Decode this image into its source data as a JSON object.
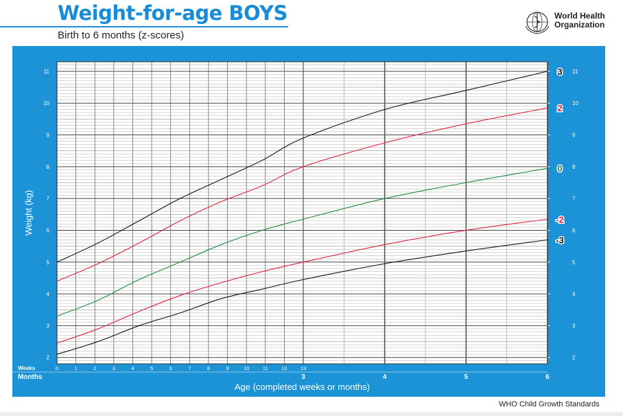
{
  "header": {
    "title": "Weight-for-age BOYS",
    "subtitle": "Birth to 6 months (z-scores)",
    "org_line1": "World Health",
    "org_line2": "Organization"
  },
  "footer": {
    "text": "WHO Child Growth Standards"
  },
  "colors": {
    "accent": "#1a8bd6",
    "panel": "#1c93d6",
    "line_black": "#111111",
    "line_red": "#e0203c",
    "line_green": "#1f8a3a"
  },
  "chart_data": {
    "type": "line",
    "title": "Weight-for-age BOYS",
    "subtitle": "Birth to 6 months (z-scores)",
    "xlabel": "Age (completed weeks or months)",
    "ylabel": "Weight (kg)",
    "xlim": [
      0,
      6
    ],
    "ylim": [
      1.8,
      11.3
    ],
    "y_ticks": [
      2,
      3,
      4,
      5,
      6,
      7,
      8,
      9,
      10,
      11
    ],
    "weeks_label": "Weeks",
    "months_label": "Months",
    "week_ticks": [
      "0",
      "1",
      "2",
      "3",
      "4",
      "5",
      "6",
      "7",
      "8",
      "9",
      "10",
      "11",
      "12",
      "13"
    ],
    "month_ticks": [
      "0",
      "3",
      "4",
      "5",
      "6"
    ],
    "grid": true,
    "x_months": [
      0,
      0.5,
      1,
      1.5,
      2,
      2.5,
      3,
      4,
      5,
      6
    ],
    "series": [
      {
        "name": "3",
        "color": "black",
        "values": [
          5.0,
          5.6,
          6.3,
          7.0,
          7.6,
          8.2,
          8.9,
          9.8,
          10.4,
          11.0
        ]
      },
      {
        "name": "2",
        "color": "red",
        "values": [
          4.4,
          4.95,
          5.6,
          6.3,
          6.9,
          7.4,
          8.0,
          8.75,
          9.35,
          9.85
        ]
      },
      {
        "name": "0",
        "color": "green",
        "values": [
          3.3,
          3.8,
          4.45,
          5.0,
          5.55,
          6.0,
          6.35,
          7.0,
          7.5,
          7.95
        ]
      },
      {
        "name": "-2",
        "color": "red",
        "values": [
          2.45,
          2.9,
          3.45,
          3.95,
          4.35,
          4.7,
          5.0,
          5.55,
          6.0,
          6.35
        ]
      },
      {
        "name": "-3",
        "color": "black",
        "values": [
          2.1,
          2.5,
          3.0,
          3.4,
          3.85,
          4.15,
          4.45,
          4.95,
          5.35,
          5.7
        ]
      }
    ]
  }
}
